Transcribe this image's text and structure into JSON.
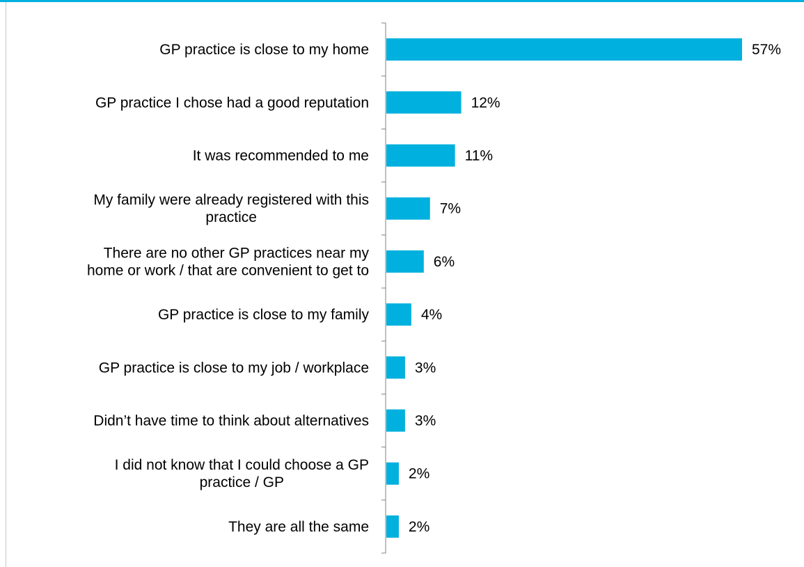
{
  "colors": {
    "accent": "#00b0de",
    "axis": "#808080"
  },
  "chart_data": {
    "type": "bar",
    "orientation": "horizontal",
    "categories": [
      [
        "GP practice is close to my home"
      ],
      [
        "GP practice I chose had a good reputation"
      ],
      [
        "It was recommended to me"
      ],
      [
        "My family were already registered with this",
        "practice"
      ],
      [
        "There are no other GP practices near my",
        "home or work / that are convenient to get to"
      ],
      [
        "GP practice is close to my family"
      ],
      [
        "GP practice is close to my job / workplace"
      ],
      [
        "Didn’t have time to think about alternatives"
      ],
      [
        "I did not know that I could choose a GP",
        "practice / GP"
      ],
      [
        "They are all the same"
      ]
    ],
    "values": [
      57,
      12,
      11,
      7,
      6,
      4,
      3,
      3,
      2,
      2
    ],
    "value_labels": [
      "57%",
      "12%",
      "11%",
      "7%",
      "6%",
      "4%",
      "3%",
      "3%",
      "2%",
      "2%"
    ],
    "unit": "%",
    "xlim": [
      0,
      57
    ],
    "grid": false,
    "legend": "none"
  }
}
